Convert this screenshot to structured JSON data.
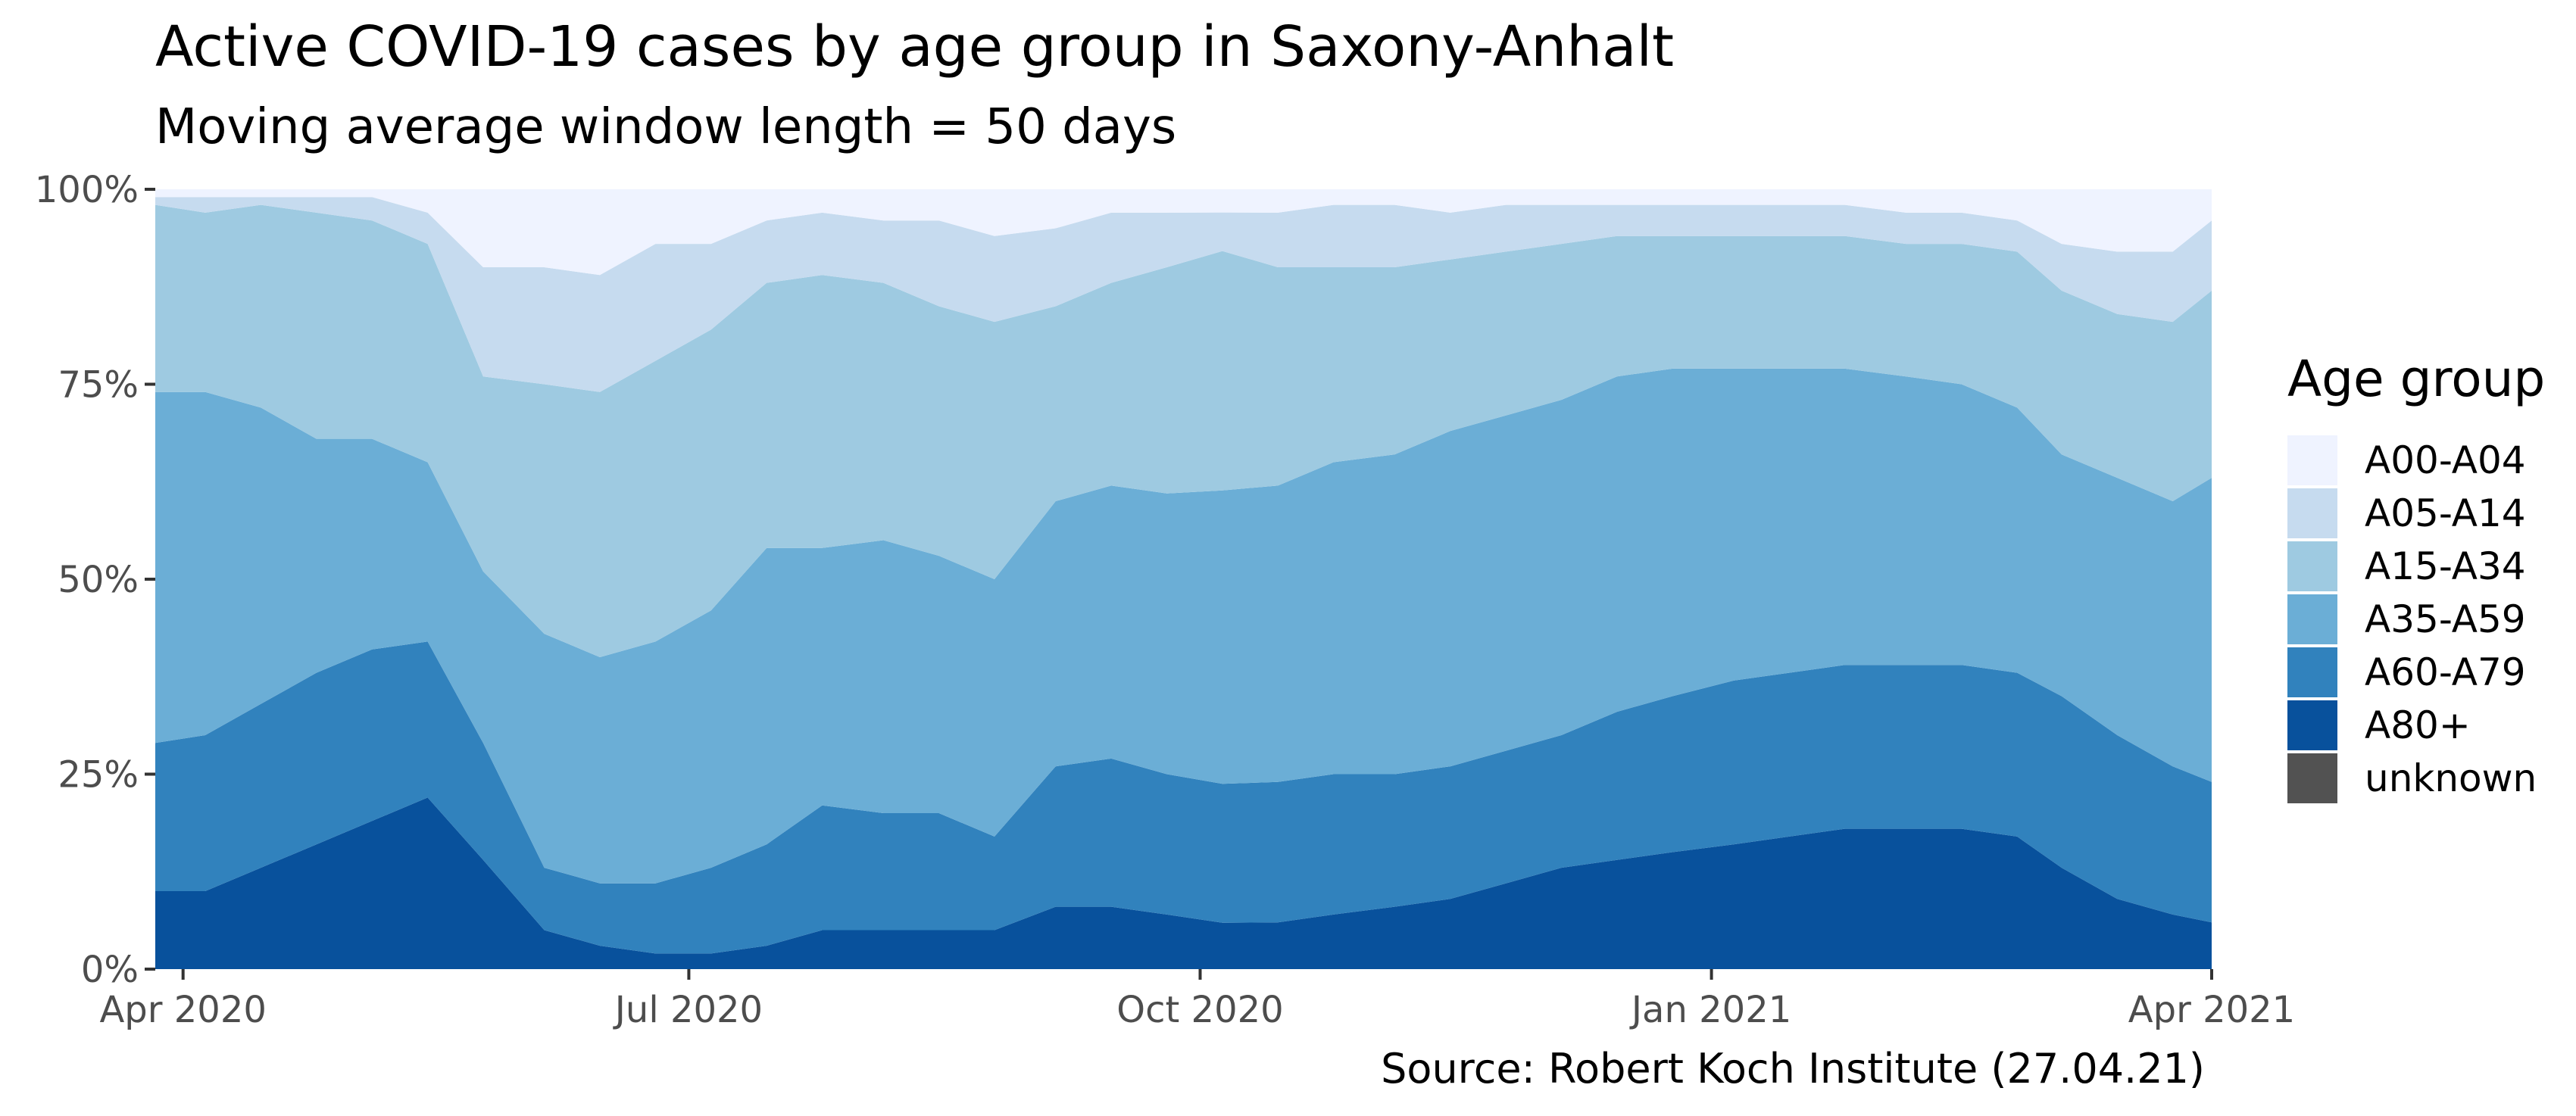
{
  "title": "Active COVID-19 cases by age group in Saxony-Anhalt",
  "subtitle": "Moving average window length = 50 days",
  "caption": "Source: Robert Koch Institute (27.04.21)",
  "legend_title": "Age group",
  "colors": {
    "A00-A04": "#eff3ff",
    "A05-A14": "#c6dbef",
    "A15-A34": "#9ecae1",
    "A35-A59": "#6baed6",
    "A60-A79": "#3182bd",
    "A80+": "#08519c",
    "unknown": "#525252"
  },
  "chart_data": {
    "type": "area",
    "stacked": "percent",
    "title": "Active COVID-19 cases by age group in Saxony-Anhalt",
    "subtitle": "Moving average window length = 50 days",
    "xlabel": "",
    "ylabel": "",
    "x_ticks": [
      "2020-04-01",
      "2020-07-01",
      "2020-10-01",
      "2021-01-01",
      "2021-04-01"
    ],
    "x_tick_labels": [
      "Apr 2020",
      "Jul 2020",
      "Oct 2020",
      "Jan 2021",
      "Apr 2021"
    ],
    "xlim": [
      "2020-03-27",
      "2021-04-01"
    ],
    "y_ticks": [
      0,
      25,
      50,
      75,
      100
    ],
    "y_tick_labels": [
      "0%",
      "25%",
      "50%",
      "75%",
      "100%"
    ],
    "ylim": [
      0,
      100
    ],
    "grid": false,
    "legend": "right",
    "x": [
      "2020-03-27",
      "2020-04-05",
      "2020-04-15",
      "2020-04-25",
      "2020-05-05",
      "2020-05-15",
      "2020-05-25",
      "2020-06-05",
      "2020-06-15",
      "2020-06-25",
      "2020-07-05",
      "2020-07-15",
      "2020-07-25",
      "2020-08-05",
      "2020-08-15",
      "2020-08-25",
      "2020-09-05",
      "2020-09-15",
      "2020-09-25",
      "2020-10-05",
      "2020-10-15",
      "2020-10-25",
      "2020-11-05",
      "2020-11-15",
      "2020-11-25",
      "2020-12-05",
      "2020-12-15",
      "2020-12-25",
      "2021-01-05",
      "2021-01-15",
      "2021-01-25",
      "2021-02-05",
      "2021-02-15",
      "2021-02-25",
      "2021-03-05",
      "2021-03-15",
      "2021-03-25",
      "2021-04-01"
    ],
    "series": [
      {
        "name": "A80+",
        "values": [
          10,
          10,
          13,
          16,
          19,
          22,
          14,
          5,
          3,
          2,
          2,
          3,
          5,
          5,
          5,
          5,
          8,
          8,
          7,
          6,
          6,
          7,
          8,
          9,
          11,
          13,
          14,
          15,
          16,
          17,
          18,
          18,
          18,
          17,
          13,
          9,
          7,
          6
        ]
      },
      {
        "name": "A60-A79",
        "values": [
          19,
          20,
          21,
          22,
          22,
          20,
          15,
          8,
          8,
          9,
          11,
          13,
          16,
          15,
          15,
          12,
          18,
          19,
          18,
          18,
          18,
          18,
          17,
          17,
          17,
          17,
          19,
          20,
          21,
          21,
          21,
          21,
          21,
          21,
          22,
          21,
          19,
          18
        ]
      },
      {
        "name": "A35-A59",
        "values": [
          45,
          44,
          38,
          30,
          27,
          23,
          22,
          30,
          29,
          31,
          33,
          38,
          33,
          35,
          33,
          33,
          34,
          35,
          36,
          38,
          38,
          40,
          41,
          43,
          43,
          43,
          43,
          42,
          40,
          39,
          38,
          37,
          36,
          34,
          31,
          33,
          34,
          39
        ]
      },
      {
        "name": "A15-A34",
        "values": [
          24,
          23,
          26,
          29,
          28,
          28,
          25,
          32,
          34,
          36,
          36,
          34,
          35,
          33,
          32,
          33,
          25,
          26,
          29,
          31,
          28,
          25,
          24,
          22,
          21,
          20,
          18,
          17,
          17,
          17,
          17,
          17,
          18,
          20,
          21,
          21,
          23,
          24
        ]
      },
      {
        "name": "A05-A14",
        "values": [
          1,
          2,
          1,
          2,
          3,
          4,
          14,
          15,
          15,
          15,
          11,
          8,
          8,
          8,
          11,
          11,
          10,
          9,
          7,
          5,
          7,
          8,
          8,
          6,
          6,
          5,
          4,
          4,
          4,
          4,
          4,
          4,
          4,
          4,
          6,
          8,
          9,
          9
        ]
      },
      {
        "name": "A00-A04",
        "values": [
          1,
          1,
          1,
          1,
          1,
          3,
          10,
          10,
          11,
          7,
          7,
          4,
          3,
          4,
          4,
          6,
          5,
          3,
          3,
          3,
          3,
          2,
          2,
          3,
          2,
          2,
          2,
          2,
          2,
          2,
          2,
          3,
          3,
          4,
          7,
          8,
          8,
          4
        ]
      },
      {
        "name": "unknown",
        "values": [
          0,
          0,
          0,
          0,
          0,
          0,
          0,
          0,
          0,
          0,
          0,
          0,
          0,
          0,
          0,
          0,
          0,
          0,
          0,
          0,
          0,
          0,
          0,
          0,
          0,
          0,
          0,
          0,
          0,
          0,
          0,
          0,
          0,
          0,
          0,
          0,
          0,
          0
        ]
      }
    ]
  },
  "legend_items": [
    {
      "label": "A00-A04",
      "color": "#eff3ff"
    },
    {
      "label": "A05-A14",
      "color": "#c6dbef"
    },
    {
      "label": "A15-A34",
      "color": "#9ecae1"
    },
    {
      "label": "A35-A59",
      "color": "#6baed6"
    },
    {
      "label": "A60-A79",
      "color": "#3182bd"
    },
    {
      "label": "A80+",
      "color": "#08519c"
    },
    {
      "label": "unknown",
      "color": "#525252"
    }
  ]
}
